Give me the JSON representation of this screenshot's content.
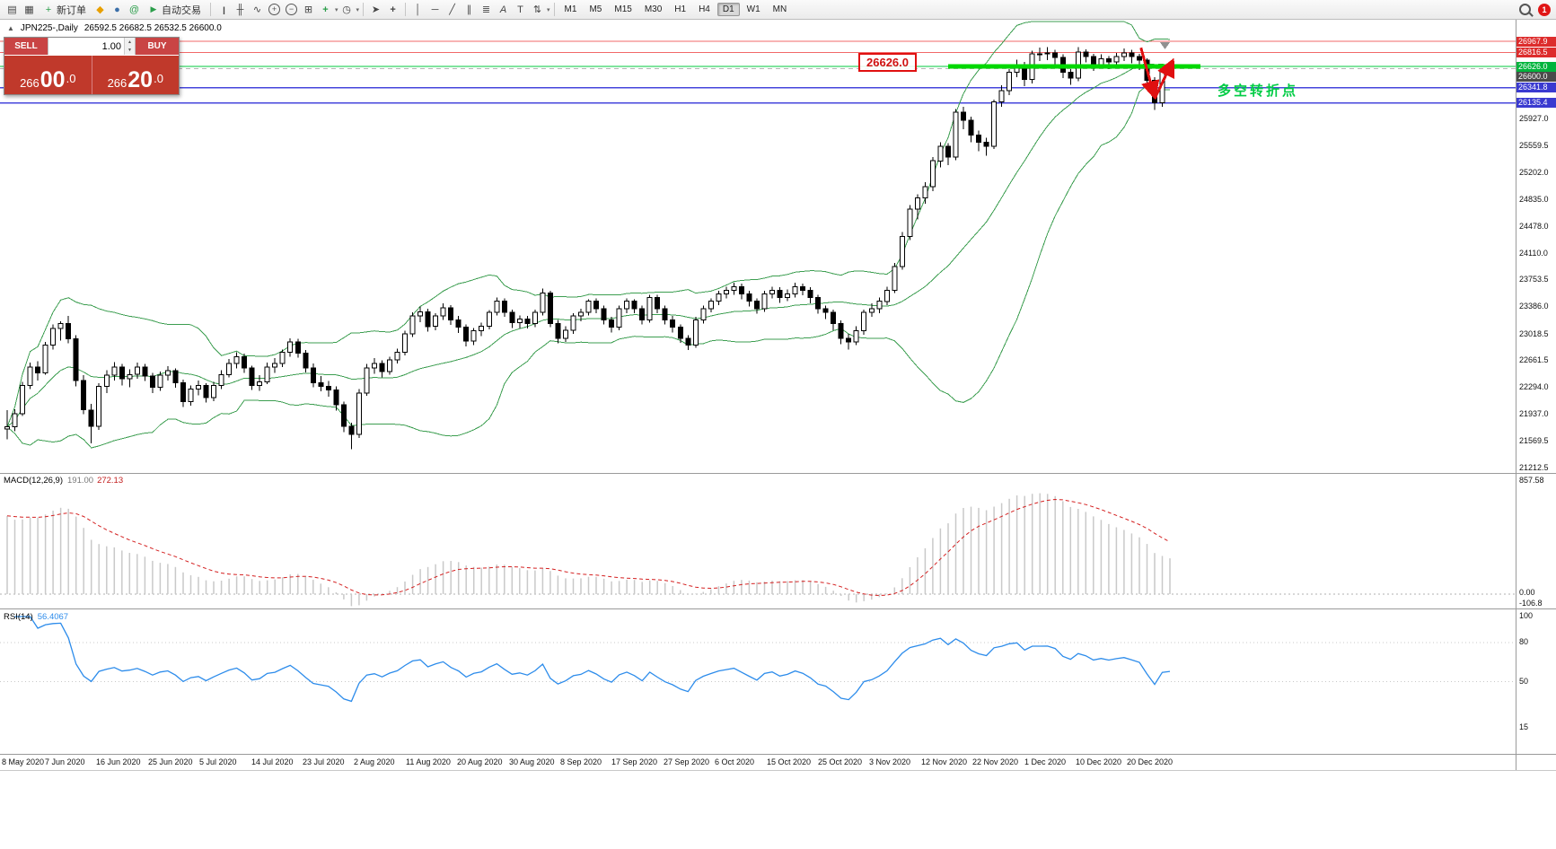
{
  "toolbar": {
    "icons": {
      "new_chart": "▤",
      "profiles": "▦",
      "new_order": "+",
      "market": "◆",
      "community": "●",
      "mql5": "@",
      "autotrade": "▶",
      "chart_bars": "|||",
      "chart_candles": "╫",
      "chart_line": "∿",
      "zoom_in": "+",
      "zoom_out": "−",
      "tile_windows": "⊞",
      "indicators": "+",
      "clock": "◷",
      "cursor": "➤",
      "crosshair": "+",
      "vline": "│",
      "hline": "─",
      "trendline": "╱",
      "channel": "∥",
      "fibonacci": "≣",
      "text": "A",
      "label": "T",
      "arrows": "⇅",
      "dropdown": "▾"
    },
    "new_order_label": "新订单",
    "auto_trading_label": "自动交易",
    "timeframes": [
      "M1",
      "M5",
      "M15",
      "M30",
      "H1",
      "H4",
      "D1",
      "W1",
      "MN"
    ],
    "active_timeframe": "D1",
    "notification_count": "1"
  },
  "chart_header": {
    "collapse_icon": "▲",
    "symbol": "JPN225-,Daily",
    "ohlc": "26592.5 26682.5 26532.5 26600.0"
  },
  "trade_panel": {
    "sell_label": "SELL",
    "buy_label": "BUY",
    "volume": "1.00",
    "spinner_up": "▲",
    "spinner_down": "▼",
    "sell_price": {
      "prefix": "266",
      "big": "00",
      "suffix": ".0"
    },
    "buy_price": {
      "prefix": "266",
      "big": "20",
      "suffix": ".0"
    }
  },
  "annotations": {
    "level_box": "26626.0",
    "turning_point": "多空转折点"
  },
  "macd_panel": {
    "label": "MACD(12,26,9)",
    "main_value": "191.00",
    "signal_value": "272.13",
    "axis": [
      "857.58",
      "0.00",
      "-106.8"
    ]
  },
  "rsi_panel": {
    "label": "RSI(14)",
    "value": "56.4067",
    "axis": [
      "100",
      "80",
      "50",
      "15"
    ]
  },
  "price_axis": {
    "ticks": [
      {
        "label": "25927.0",
        "price": 25927.0
      },
      {
        "label": "25559.5",
        "price": 25559.5
      },
      {
        "label": "25202.0",
        "price": 25202.0
      },
      {
        "label": "24835.0",
        "price": 24835.0
      },
      {
        "label": "24478.0",
        "price": 24478.0
      },
      {
        "label": "24110.0",
        "price": 24110.0
      },
      {
        "label": "23753.5",
        "price": 23753.5
      },
      {
        "label": "23386.0",
        "price": 23386.0
      },
      {
        "label": "23018.5",
        "price": 23018.5
      },
      {
        "label": "22661.5",
        "price": 22661.5
      },
      {
        "label": "22294.0",
        "price": 22294.0
      },
      {
        "label": "21937.0",
        "price": 21937.0
      },
      {
        "label": "21569.5",
        "price": 21569.5
      },
      {
        "label": "21212.5",
        "price": 21212.5
      }
    ],
    "badges": [
      {
        "label": "26967.9",
        "price": 26967.9,
        "bg": "#dd2c2c"
      },
      {
        "label": "26816.5",
        "price": 26816.5,
        "bg": "#dd2c2c"
      },
      {
        "label": "26626.0",
        "price": 26626.0,
        "bg": "#00b43c"
      },
      {
        "label": "26600.0",
        "price": 26600.0,
        "bg": "#4a4a4a"
      },
      {
        "label": "26341.8",
        "price": 26341.8,
        "bg": "#3a3ad0"
      },
      {
        "label": "26135.4",
        "price": 26135.4,
        "bg": "#3a3ad0"
      }
    ]
  },
  "dates": [
    "8 May 2020",
    "7 Jun 2020",
    "16 Jun 2020",
    "25 Jun 2020",
    "5 Jul 2020",
    "14 Jul 2020",
    "23 Jul 2020",
    "2 Aug 2020",
    "11 Aug 2020",
    "20 Aug 2020",
    "30 Aug 2020",
    "8 Sep 2020",
    "17 Sep 2020",
    "27 Sep 2020",
    "6 Oct 2020",
    "15 Oct 2020",
    "25 Oct 2020",
    "3 Nov 2020",
    "12 Nov 2020",
    "22 Nov 2020",
    "1 Dec 2020",
    "10 Dec 2020",
    "20 Dec 2020"
  ],
  "chart_data": {
    "type": "candlestick",
    "symbol": "JPN225",
    "timeframe": "Daily",
    "y_range": [
      21212.5,
      26967.9
    ],
    "bollinger": {
      "period": 20,
      "deviation": 2,
      "color": "#3c9e50"
    },
    "macd": {
      "fast": 12,
      "slow": 26,
      "signal": 9,
      "last_main": 191.0,
      "last_signal": 272.13
    },
    "rsi": {
      "period": 14,
      "last": 56.4067
    },
    "levels": [
      {
        "price": 26967.9,
        "color": "#f26868"
      },
      {
        "price": 26816.5,
        "color": "#f26868"
      },
      {
        "price": 26626.0,
        "color": "#00c83c"
      },
      {
        "price": 26341.8,
        "color": "#4646dc",
        "width": 1.5
      },
      {
        "price": 26135.4,
        "color": "#4646dc",
        "width": 1.5
      },
      {
        "price": 26600.0,
        "color": "#b4b4b4",
        "dashed": true
      }
    ],
    "trend_segment": {
      "price": 26626.0,
      "from_index": 123,
      "to_index": 156,
      "color": "#00d800",
      "width": 5
    },
    "arrows": [
      {
        "i1": 148.2,
        "p1": 26880,
        "i2": 150.0,
        "p2": 26210
      },
      {
        "i1": 150.0,
        "p1": 26190,
        "i2": 152.4,
        "p2": 26710
      }
    ],
    "candles": [
      [
        21720,
        21980,
        21580,
        21750
      ],
      [
        21750,
        21990,
        21690,
        21930
      ],
      [
        21930,
        22360,
        21900,
        22310
      ],
      [
        22310,
        22620,
        22260,
        22560
      ],
      [
        22560,
        22640,
        22380,
        22480
      ],
      [
        22480,
        22900,
        22460,
        22860
      ],
      [
        22860,
        23140,
        22800,
        23080
      ],
      [
        23080,
        23180,
        22920,
        23150
      ],
      [
        23150,
        23250,
        22880,
        22940
      ],
      [
        22940,
        22990,
        22300,
        22380
      ],
      [
        22380,
        22450,
        21920,
        21980
      ],
      [
        21980,
        22060,
        21530,
        21760
      ],
      [
        21760,
        22340,
        21710,
        22300
      ],
      [
        22300,
        22520,
        22210,
        22450
      ],
      [
        22450,
        22630,
        22380,
        22560
      ],
      [
        22560,
        22600,
        22310,
        22400
      ],
      [
        22400,
        22530,
        22290,
        22460
      ],
      [
        22460,
        22620,
        22400,
        22560
      ],
      [
        22560,
        22600,
        22370,
        22440
      ],
      [
        22440,
        22480,
        22210,
        22290
      ],
      [
        22290,
        22500,
        22240,
        22450
      ],
      [
        22450,
        22570,
        22380,
        22510
      ],
      [
        22510,
        22540,
        22280,
        22350
      ],
      [
        22350,
        22390,
        22020,
        22090
      ],
      [
        22090,
        22310,
        22040,
        22260
      ],
      [
        22260,
        22380,
        22180,
        22310
      ],
      [
        22310,
        22340,
        22080,
        22150
      ],
      [
        22150,
        22360,
        22100,
        22310
      ],
      [
        22310,
        22520,
        22260,
        22460
      ],
      [
        22460,
        22670,
        22420,
        22610
      ],
      [
        22610,
        22760,
        22540,
        22700
      ],
      [
        22700,
        22740,
        22480,
        22550
      ],
      [
        22550,
        22580,
        22250,
        22310
      ],
      [
        22310,
        22450,
        22240,
        22360
      ],
      [
        22360,
        22620,
        22330,
        22560
      ],
      [
        22560,
        22680,
        22480,
        22610
      ],
      [
        22610,
        22800,
        22560,
        22760
      ],
      [
        22760,
        22950,
        22700,
        22900
      ],
      [
        22900,
        22940,
        22690,
        22750
      ],
      [
        22750,
        22790,
        22490,
        22550
      ],
      [
        22550,
        22610,
        22290,
        22350
      ],
      [
        22350,
        22440,
        22230,
        22300
      ],
      [
        22300,
        22370,
        22160,
        22250
      ],
      [
        22250,
        22300,
        21970,
        22050
      ],
      [
        22050,
        22090,
        21680,
        21760
      ],
      [
        21760,
        21810,
        21450,
        21650
      ],
      [
        21650,
        22260,
        21600,
        22210
      ],
      [
        22210,
        22600,
        22170,
        22550
      ],
      [
        22550,
        22680,
        22470,
        22610
      ],
      [
        22610,
        22650,
        22420,
        22500
      ],
      [
        22500,
        22700,
        22460,
        22660
      ],
      [
        22660,
        22810,
        22610,
        22760
      ],
      [
        22760,
        23050,
        22720,
        23010
      ],
      [
        23010,
        23300,
        22970,
        23250
      ],
      [
        23250,
        23380,
        23170,
        23310
      ],
      [
        23310,
        23350,
        23040,
        23110
      ],
      [
        23110,
        23290,
        23060,
        23250
      ],
      [
        23250,
        23420,
        23200,
        23360
      ],
      [
        23360,
        23400,
        23130,
        23200
      ],
      [
        23200,
        23250,
        23020,
        23100
      ],
      [
        23100,
        23140,
        22840,
        22910
      ],
      [
        22910,
        23090,
        22860,
        23050
      ],
      [
        23050,
        23160,
        22980,
        23110
      ],
      [
        23110,
        23330,
        23070,
        23300
      ],
      [
        23300,
        23500,
        23260,
        23450
      ],
      [
        23450,
        23490,
        23240,
        23300
      ],
      [
        23300,
        23340,
        23090,
        23160
      ],
      [
        23160,
        23260,
        23080,
        23210
      ],
      [
        23210,
        23250,
        23080,
        23150
      ],
      [
        23150,
        23340,
        23100,
        23300
      ],
      [
        23300,
        23620,
        23260,
        23560
      ],
      [
        23560,
        23590,
        23100,
        23150
      ],
      [
        23150,
        23200,
        22880,
        22950
      ],
      [
        22950,
        23110,
        22900,
        23060
      ],
      [
        23060,
        23290,
        23010,
        23250
      ],
      [
        23250,
        23350,
        23180,
        23300
      ],
      [
        23300,
        23480,
        23260,
        23450
      ],
      [
        23450,
        23490,
        23290,
        23350
      ],
      [
        23350,
        23390,
        23140,
        23200
      ],
      [
        23200,
        23240,
        23030,
        23100
      ],
      [
        23100,
        23390,
        23060,
        23350
      ],
      [
        23350,
        23490,
        23290,
        23450
      ],
      [
        23450,
        23480,
        23290,
        23350
      ],
      [
        23350,
        23390,
        23140,
        23200
      ],
      [
        23200,
        23540,
        23160,
        23500
      ],
      [
        23500,
        23540,
        23290,
        23350
      ],
      [
        23350,
        23390,
        23140,
        23200
      ],
      [
        23200,
        23250,
        23030,
        23100
      ],
      [
        23100,
        23140,
        22890,
        22950
      ],
      [
        22950,
        22990,
        22790,
        22860
      ],
      [
        22860,
        23240,
        22820,
        23200
      ],
      [
        23200,
        23390,
        23150,
        23350
      ],
      [
        23350,
        23490,
        23300,
        23450
      ],
      [
        23450,
        23590,
        23400,
        23550
      ],
      [
        23550,
        23650,
        23490,
        23600
      ],
      [
        23600,
        23700,
        23540,
        23650
      ],
      [
        23650,
        23690,
        23480,
        23550
      ],
      [
        23550,
        23590,
        23380,
        23450
      ],
      [
        23450,
        23490,
        23280,
        23350
      ],
      [
        23350,
        23590,
        23310,
        23550
      ],
      [
        23550,
        23650,
        23490,
        23600
      ],
      [
        23600,
        23640,
        23430,
        23500
      ],
      [
        23500,
        23610,
        23450,
        23550
      ],
      [
        23550,
        23700,
        23500,
        23650
      ],
      [
        23650,
        23690,
        23530,
        23600
      ],
      [
        23600,
        23640,
        23420,
        23500
      ],
      [
        23500,
        23540,
        23280,
        23350
      ],
      [
        23350,
        23390,
        23210,
        23300
      ],
      [
        23300,
        23340,
        23060,
        23150
      ],
      [
        23150,
        23190,
        22870,
        22950
      ],
      [
        22950,
        23010,
        22800,
        22900
      ],
      [
        22900,
        23110,
        22860,
        23050
      ],
      [
        23050,
        23340,
        23000,
        23300
      ],
      [
        23300,
        23420,
        23240,
        23350
      ],
      [
        23350,
        23500,
        23290,
        23450
      ],
      [
        23450,
        23650,
        23400,
        23600
      ],
      [
        23600,
        23970,
        23560,
        23920
      ],
      [
        23920,
        24390,
        23880,
        24330
      ],
      [
        24330,
        24750,
        24280,
        24700
      ],
      [
        24700,
        24900,
        24560,
        24850
      ],
      [
        24850,
        25060,
        24770,
        25000
      ],
      [
        25000,
        25400,
        24940,
        25350
      ],
      [
        25350,
        25600,
        25260,
        25550
      ],
      [
        25550,
        25590,
        25290,
        25400
      ],
      [
        25400,
        26050,
        25360,
        26010
      ],
      [
        26010,
        26080,
        25780,
        25900
      ],
      [
        25900,
        25950,
        25600,
        25700
      ],
      [
        25700,
        25760,
        25480,
        25600
      ],
      [
        25600,
        25660,
        25420,
        25550
      ],
      [
        25550,
        26180,
        25510,
        26150
      ],
      [
        26150,
        26370,
        26080,
        26300
      ],
      [
        26300,
        26590,
        26240,
        26550
      ],
      [
        26550,
        26720,
        26480,
        26650
      ],
      [
        26650,
        26690,
        26360,
        26450
      ],
      [
        26450,
        26840,
        26400,
        26800
      ],
      [
        26800,
        26880,
        26700,
        26800
      ],
      [
        26800,
        26890,
        26710,
        26810
      ],
      [
        26810,
        26850,
        26640,
        26750
      ],
      [
        26750,
        26790,
        26470,
        26550
      ],
      [
        26550,
        26590,
        26380,
        26470
      ],
      [
        26470,
        26890,
        26430,
        26820
      ],
      [
        26820,
        26860,
        26680,
        26760
      ],
      [
        26760,
        26800,
        26570,
        26650
      ],
      [
        26650,
        26790,
        26600,
        26730
      ],
      [
        26730,
        26770,
        26590,
        26690
      ],
      [
        26690,
        26810,
        26640,
        26760
      ],
      [
        26760,
        26870,
        26700,
        26810
      ],
      [
        26810,
        26850,
        26670,
        26760
      ],
      [
        26760,
        26800,
        26580,
        26710
      ],
      [
        26710,
        26740,
        26340,
        26440
      ],
      [
        26440,
        26480,
        26040,
        26135
      ],
      [
        26135,
        26580,
        26080,
        26560
      ],
      [
        26592.5,
        26682.5,
        26532.5,
        26600
      ]
    ]
  }
}
